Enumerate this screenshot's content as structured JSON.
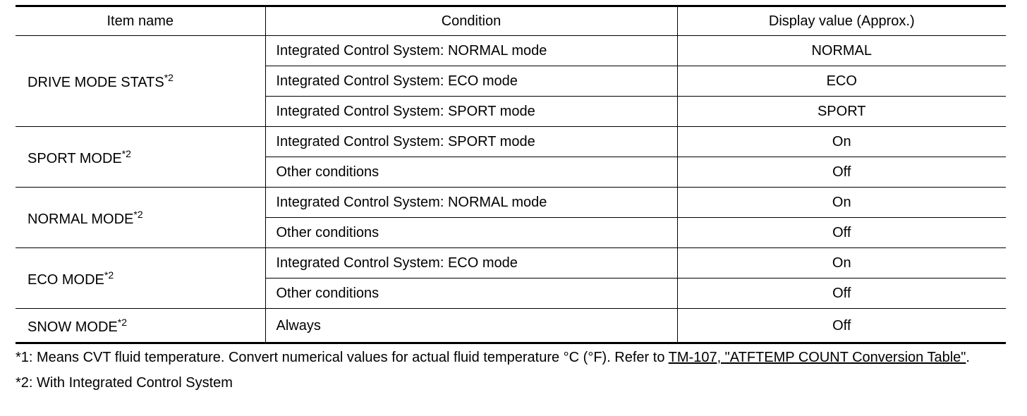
{
  "table": {
    "header": [
      "Item name",
      "Condition",
      "Display value (Approx.)"
    ],
    "groups": [
      {
        "item": "DRIVE MODE STATS",
        "note": "*2",
        "rows": [
          [
            "Integrated Control System: NORMAL mode",
            "NORMAL"
          ],
          [
            "Integrated Control System: ECO mode",
            "ECO"
          ],
          [
            "Integrated Control System: SPORT mode",
            "SPORT"
          ]
        ]
      },
      {
        "item": "SPORT MODE",
        "note": "*2",
        "rows": [
          [
            "Integrated Control System: SPORT mode",
            "On"
          ],
          [
            "Other conditions",
            "Off"
          ]
        ]
      },
      {
        "item": "NORMAL MODE",
        "note": "*2",
        "rows": [
          [
            "Integrated Control System: NORMAL mode",
            "On"
          ],
          [
            "Other conditions",
            "Off"
          ]
        ]
      },
      {
        "item": "ECO MODE",
        "note": "*2",
        "rows": [
          [
            "Integrated Control System: ECO mode",
            "On"
          ],
          [
            "Other conditions",
            "Off"
          ]
        ]
      },
      {
        "item": "SNOW MODE",
        "note": "*2",
        "rows": [
          [
            "Always",
            "Off"
          ]
        ]
      }
    ]
  },
  "footnotes": [
    {
      "text": "*1: Means CVT fluid temperature. Convert numerical values for actual fluid temperature °C (°F). Refer to ",
      "link": "TM-107, \"ATFTEMP COUNT Conversion Table\"",
      "after": "."
    },
    {
      "text": "*2: With Integrated Control System"
    }
  ]
}
